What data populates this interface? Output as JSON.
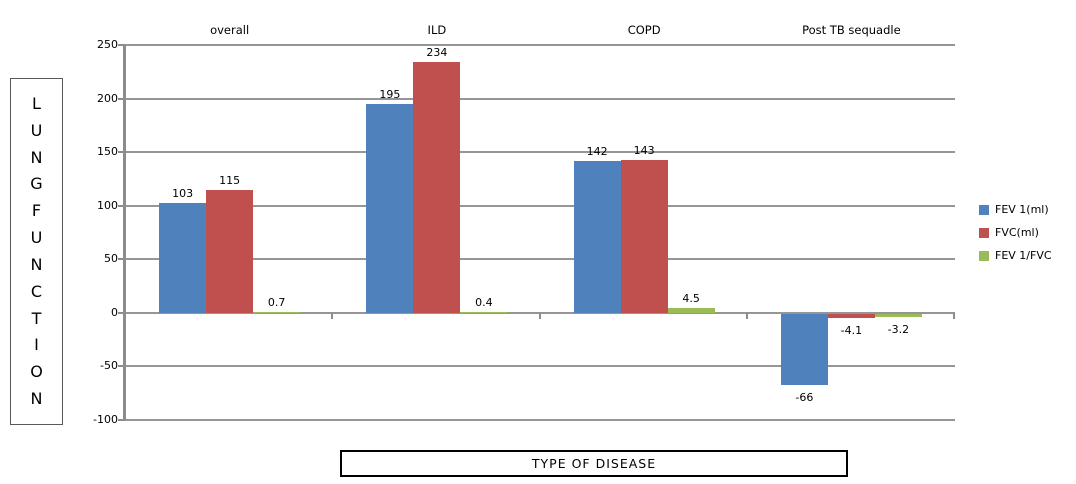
{
  "chart_data": {
    "type": "bar",
    "title": "",
    "categories": [
      "overall",
      "ILD",
      "COPD",
      "Post TB sequadle"
    ],
    "series": [
      {
        "name": "FEV 1(ml)",
        "color": "#4F81BD",
        "values": [
          103,
          195,
          142,
          -66
        ]
      },
      {
        "name": "FVC(ml)",
        "color": "#C0504D",
        "values": [
          115,
          234,
          143,
          -4.1
        ]
      },
      {
        "name": "FEV 1/FVC",
        "color": "#9BBB59",
        "values": [
          0.7,
          0.4,
          4.5,
          -3.2
        ]
      }
    ],
    "data_labels": [
      [
        "103",
        "195",
        "142",
        "-66"
      ],
      [
        "115",
        "234",
        "143",
        "-4.1"
      ],
      [
        "0.7",
        "0.4",
        "4.5",
        "-3.2"
      ]
    ],
    "xlabel": "TYPE OF DISEASE",
    "ylabel": "LUNG FUNCTION",
    "ylim": [
      -100,
      250
    ],
    "yticks": [
      250,
      200,
      150,
      100,
      50,
      0,
      -50,
      -100
    ],
    "grid": true,
    "legend_position": "right",
    "colors": {
      "gridline": "#969696",
      "axis": "#8C8C8C",
      "text": "#000000"
    }
  }
}
